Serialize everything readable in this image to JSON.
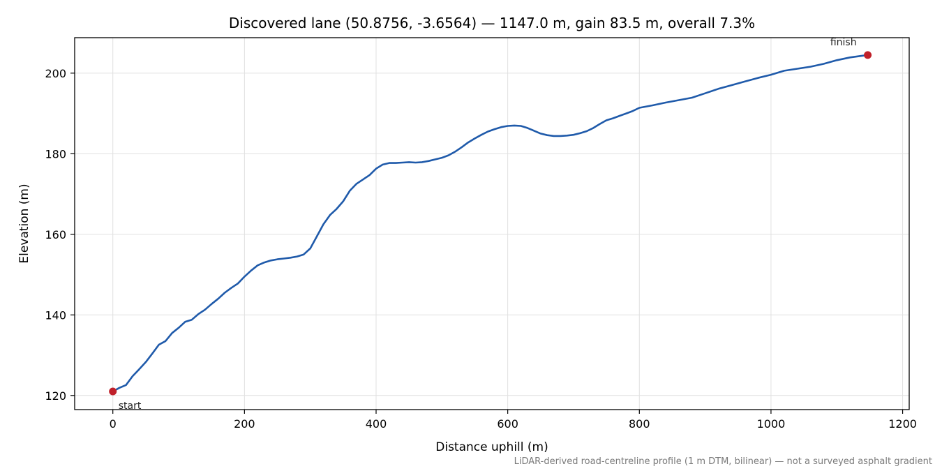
{
  "chart_data": {
    "type": "line",
    "title": "Discovered lane (50.8756, -3.6564) — 1147.0 m, gain 83.5 m, overall 7.3%",
    "xlabel": "Distance uphill (m)",
    "ylabel": "Elevation (m)",
    "xlim": [
      -58,
      1210
    ],
    "ylim": [
      116.5,
      208.8
    ],
    "xticks": [
      0,
      200,
      400,
      600,
      800,
      1000,
      1200
    ],
    "yticks": [
      120,
      140,
      160,
      180,
      200
    ],
    "grid": true,
    "series": [
      {
        "color": "#1f5aaa",
        "x": [
          0,
          10,
          20,
          30,
          40,
          50,
          60,
          70,
          80,
          90,
          100,
          110,
          120,
          130,
          140,
          150,
          160,
          170,
          180,
          190,
          200,
          210,
          220,
          230,
          240,
          250,
          260,
          270,
          280,
          290,
          300,
          310,
          320,
          330,
          340,
          350,
          360,
          370,
          380,
          390,
          400,
          410,
          420,
          430,
          440,
          450,
          460,
          470,
          480,
          490,
          500,
          510,
          520,
          530,
          540,
          550,
          560,
          570,
          580,
          590,
          600,
          610,
          620,
          630,
          640,
          650,
          660,
          670,
          680,
          690,
          700,
          710,
          720,
          730,
          740,
          750,
          760,
          770,
          780,
          790,
          800,
          820,
          840,
          860,
          880,
          900,
          920,
          940,
          960,
          980,
          1000,
          1020,
          1040,
          1060,
          1080,
          1100,
          1120,
          1147
        ],
        "y": [
          121.0,
          121.9,
          122.6,
          124.8,
          126.5,
          128.3,
          130.4,
          132.6,
          133.5,
          135.5,
          136.8,
          138.3,
          138.8,
          140.2,
          141.3,
          142.7,
          144.0,
          145.5,
          146.7,
          147.8,
          149.5,
          151.0,
          152.3,
          153.0,
          153.5,
          153.8,
          154.0,
          154.2,
          154.5,
          155.0,
          156.5,
          159.5,
          162.5,
          164.8,
          166.3,
          168.2,
          170.8,
          172.5,
          173.6,
          174.7,
          176.3,
          177.3,
          177.7,
          177.7,
          177.8,
          177.9,
          177.8,
          177.9,
          178.2,
          178.6,
          179.0,
          179.6,
          180.5,
          181.6,
          182.8,
          183.8,
          184.7,
          185.5,
          186.1,
          186.6,
          186.9,
          187.0,
          186.9,
          186.4,
          185.7,
          185.0,
          184.6,
          184.4,
          184.4,
          184.5,
          184.7,
          185.1,
          185.6,
          186.4,
          187.4,
          188.3,
          188.8,
          189.4,
          190.0,
          190.6,
          191.4,
          192.0,
          192.7,
          193.3,
          193.9,
          195.0,
          196.1,
          197.0,
          197.9,
          198.8,
          199.6,
          200.6,
          201.1,
          201.6,
          202.3,
          203.2,
          203.9,
          204.5
        ]
      }
    ],
    "markers": [
      {
        "label": "start",
        "x": 0,
        "y": 121.0
      },
      {
        "label": "finish",
        "x": 1147,
        "y": 204.5
      }
    ],
    "marker_color": "#c0202a",
    "footnote": "LiDAR-derived road-centreline profile (1 m DTM, bilinear) — not a surveyed asphalt gradient"
  }
}
